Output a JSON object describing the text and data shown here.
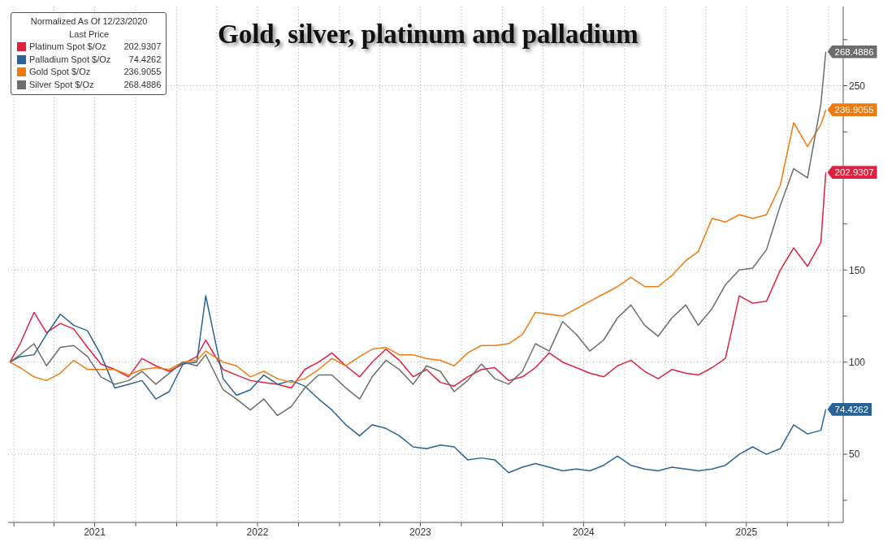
{
  "chart_data": {
    "type": "line",
    "title": "Gold, silver, platinum and palladium",
    "legend_title": "Normalized As Of 12/23/2020",
    "annotations": [
      "Last Price"
    ],
    "legend": "top left",
    "grid": true,
    "x": [
      "2020-12-23",
      "2021-01-15",
      "2021-02-15",
      "2021-03-15",
      "2021-04-15",
      "2021-05-15",
      "2021-06-15",
      "2021-07-15",
      "2021-08-15",
      "2021-09-15",
      "2021-10-15",
      "2021-11-15",
      "2021-12-15",
      "2022-01-15",
      "2022-02-15",
      "2022-03-07",
      "2022-04-15",
      "2022-05-15",
      "2022-06-15",
      "2022-07-15",
      "2022-08-15",
      "2022-09-15",
      "2022-10-15",
      "2022-11-15",
      "2022-12-15",
      "2023-01-15",
      "2023-02-15",
      "2023-03-15",
      "2023-04-15",
      "2023-05-15",
      "2023-06-15",
      "2023-07-15",
      "2023-08-15",
      "2023-09-15",
      "2023-10-15",
      "2023-11-15",
      "2023-12-15",
      "2024-01-15",
      "2024-02-15",
      "2024-03-15",
      "2024-04-15",
      "2024-05-15",
      "2024-06-15",
      "2024-07-15",
      "2024-08-15",
      "2024-09-15",
      "2024-10-15",
      "2024-11-15",
      "2024-12-15",
      "2025-01-15",
      "2025-02-15",
      "2025-03-15",
      "2025-04-15",
      "2025-05-15",
      "2025-06-15",
      "2025-07-15",
      "2025-08-15",
      "2025-09-15",
      "2025-10-15",
      "2025-11-15",
      "2025-12-15",
      "2025-12-26"
    ],
    "series": [
      {
        "name": "Platinum Spot $/Oz",
        "color": "#e0203f",
        "values": [
          100,
          110,
          127,
          116,
          121,
          118,
          108,
          99,
          96,
          92,
          102,
          98,
          95,
          99,
          103,
          112,
          96,
          93,
          90,
          89,
          88,
          86,
          96,
          100,
          105,
          98,
          92,
          100,
          107,
          101,
          92,
          96,
          89,
          87,
          92,
          96,
          97,
          90,
          92,
          97,
          105,
          100,
          97,
          94,
          92,
          98,
          101,
          95,
          91,
          96,
          94,
          93,
          97,
          102,
          136,
          132,
          133,
          150,
          162,
          152,
          165,
          202.9307
        ],
        "value_labels": [
          null,
          null,
          null,
          null,
          null,
          null,
          null,
          null,
          null,
          null,
          null,
          null,
          null,
          null,
          null,
          null,
          null,
          null,
          null,
          null,
          null,
          null,
          null,
          null,
          null,
          null,
          null,
          null,
          null,
          null,
          null,
          null,
          null,
          null,
          null,
          null,
          null,
          null,
          null,
          null,
          null,
          null,
          null,
          null,
          null,
          null,
          null,
          null,
          null,
          null,
          null,
          null,
          null,
          null,
          null,
          null,
          null,
          null,
          null,
          null,
          null,
          "202.9307"
        ]
      },
      {
        "name": "Palladium Spot $/Oz",
        "color": "#2a6496",
        "values": [
          100,
          103,
          104,
          115,
          126,
          120,
          117,
          104,
          86,
          88,
          90,
          80,
          84,
          99,
          100,
          136,
          91,
          82,
          85,
          93,
          88,
          90,
          87,
          80,
          74,
          66,
          60,
          66,
          64,
          60,
          54,
          53,
          55,
          54,
          47,
          48,
          47,
          40,
          43,
          45,
          43,
          41,
          42,
          41,
          44,
          49,
          44,
          42,
          41,
          43,
          42,
          41,
          42,
          44,
          50,
          54,
          50,
          53,
          66,
          61,
          63,
          74.4262
        ],
        "value_labels": [
          null,
          null,
          null,
          null,
          null,
          null,
          null,
          null,
          null,
          null,
          null,
          null,
          null,
          null,
          null,
          null,
          null,
          null,
          null,
          null,
          null,
          null,
          null,
          null,
          null,
          null,
          null,
          null,
          null,
          null,
          null,
          null,
          null,
          null,
          null,
          null,
          null,
          null,
          null,
          null,
          null,
          null,
          null,
          null,
          null,
          null,
          null,
          null,
          null,
          null,
          null,
          null,
          null,
          null,
          null,
          null,
          null,
          null,
          null,
          null,
          null,
          "74.4262"
        ]
      },
      {
        "name": "Gold Spot $/Oz",
        "color": "#f07a10",
        "values": [
          100,
          97,
          92,
          90,
          94,
          101,
          96,
          96,
          96,
          93,
          96,
          97,
          96,
          100,
          101,
          106,
          100,
          98,
          92,
          95,
          91,
          89,
          91,
          96,
          102,
          98,
          103,
          107,
          108,
          104,
          104,
          102,
          101,
          98,
          105,
          109,
          109,
          110,
          115,
          127,
          126,
          125,
          129,
          133,
          137,
          141,
          146,
          141,
          141,
          147,
          155,
          160,
          178,
          176,
          180,
          178,
          180,
          196,
          230,
          217,
          229,
          236.9055
        ],
        "value_labels": [
          null,
          null,
          null,
          null,
          null,
          null,
          null,
          null,
          null,
          null,
          null,
          null,
          null,
          null,
          null,
          null,
          null,
          null,
          null,
          null,
          null,
          null,
          null,
          null,
          null,
          null,
          null,
          null,
          null,
          null,
          null,
          null,
          null,
          null,
          null,
          null,
          null,
          null,
          null,
          null,
          null,
          null,
          null,
          null,
          null,
          null,
          null,
          null,
          null,
          null,
          null,
          null,
          null,
          null,
          null,
          null,
          null,
          null,
          null,
          null,
          null,
          "236.9055"
        ]
      },
      {
        "name": "Silver Spot $/Oz",
        "color": "#6d6d6d",
        "values": [
          100,
          104,
          110,
          98,
          108,
          109,
          103,
          92,
          88,
          90,
          95,
          88,
          94,
          100,
          98,
          104,
          85,
          80,
          74,
          80,
          71,
          76,
          86,
          93,
          93,
          86,
          80,
          92,
          101,
          96,
          88,
          98,
          95,
          84,
          90,
          99,
          91,
          88,
          95,
          110,
          106,
          122,
          115,
          106,
          112,
          124,
          131,
          120,
          114,
          124,
          131,
          120,
          129,
          142,
          150,
          151,
          161,
          185,
          205,
          200,
          240,
          268.4886
        ],
        "value_labels": [
          null,
          null,
          null,
          null,
          null,
          null,
          null,
          null,
          null,
          null,
          null,
          null,
          null,
          null,
          null,
          null,
          null,
          null,
          null,
          null,
          null,
          null,
          null,
          null,
          null,
          null,
          null,
          null,
          null,
          null,
          null,
          null,
          null,
          null,
          null,
          null,
          null,
          null,
          null,
          null,
          null,
          null,
          null,
          null,
          null,
          null,
          null,
          null,
          null,
          null,
          null,
          null,
          null,
          null,
          null,
          null,
          null,
          null,
          null,
          null,
          null,
          "268.4886"
        ]
      }
    ],
    "xlim": [
      "2020-12-19",
      "2026-02-03"
    ],
    "xticks": [
      {
        "value": "2021-01-01",
        "label": null
      },
      {
        "value": "2021-04-01",
        "label": null
      },
      {
        "value": "2021-07-01",
        "label": "2021"
      },
      {
        "value": "2021-10-01",
        "label": null
      },
      {
        "value": "2022-01-01",
        "label": null
      },
      {
        "value": "2022-04-01",
        "label": null
      },
      {
        "value": "2022-07-01",
        "label": "2022"
      },
      {
        "value": "2022-10-01",
        "label": null
      },
      {
        "value": "2023-01-01",
        "label": null
      },
      {
        "value": "2023-04-01",
        "label": null
      },
      {
        "value": "2023-07-01",
        "label": "2023"
      },
      {
        "value": "2023-10-01",
        "label": null
      },
      {
        "value": "2024-01-01",
        "label": null
      },
      {
        "value": "2024-04-01",
        "label": null
      },
      {
        "value": "2024-07-01",
        "label": "2024"
      },
      {
        "value": "2024-10-01",
        "label": null
      },
      {
        "value": "2025-01-01",
        "label": null
      },
      {
        "value": "2025-04-01",
        "label": null
      },
      {
        "value": "2025-07-01",
        "label": "2025"
      },
      {
        "value": "2025-10-01",
        "label": null
      },
      {
        "value": "2026-01-01",
        "label": null
      }
    ],
    "ylim": [
      13,
      293
    ],
    "yticks": [
      {
        "value": 25,
        "label": null
      },
      50,
      {
        "value": 75,
        "label": null
      },
      100,
      {
        "value": 125,
        "label": null
      },
      150,
      {
        "value": 175,
        "label": null
      },
      {
        "value": 200,
        "label": null
      },
      {
        "value": 225,
        "label": null
      },
      250,
      {
        "value": 275,
        "label": null
      }
    ]
  }
}
